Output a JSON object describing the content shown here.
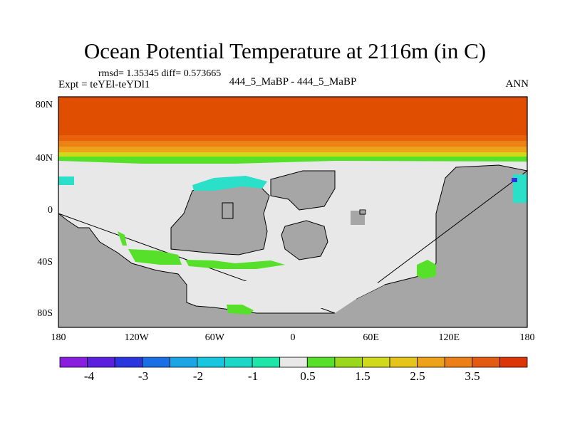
{
  "header": {
    "title": "Ocean Potential Temperature at 2116m (in C)",
    "stats": "rmsd= 1.35345  diff= 0.573665",
    "experiment": "Expt = teYEl-teYDl1",
    "comparison": "444_5_MaBP - 444_5_MaBP",
    "season": "ANN"
  },
  "axes": {
    "lat_ticks": [
      "80N",
      "40N",
      "0",
      "40S",
      "80S"
    ],
    "lon_ticks": [
      "180",
      "120W",
      "60W",
      "0",
      "60E",
      "120E",
      "180"
    ]
  },
  "colorbar": {
    "labels": [
      "-4",
      "-3",
      "-2",
      "-1",
      "0.5",
      "1.5",
      "2.5",
      "3.5"
    ],
    "colors": [
      "#8a1ee0",
      "#5b1fe0",
      "#2a35e0",
      "#1a6fe6",
      "#1aa6e6",
      "#17c7df",
      "#1ad8c8",
      "#1ee6a8",
      "#e8e8e8",
      "#56e02a",
      "#9bd81c",
      "#d0d91a",
      "#e6c51a",
      "#eea21a",
      "#ec7f16",
      "#e45a10",
      "#dd3408"
    ]
  },
  "map_colors": {
    "land": "#a6a6a6",
    "neutral_ocean": "#e8e8e8",
    "warm_band": "#e04e02",
    "cyan": "#2ae0c8",
    "green": "#56e02a",
    "blue_spot": "#2a35e0"
  }
}
